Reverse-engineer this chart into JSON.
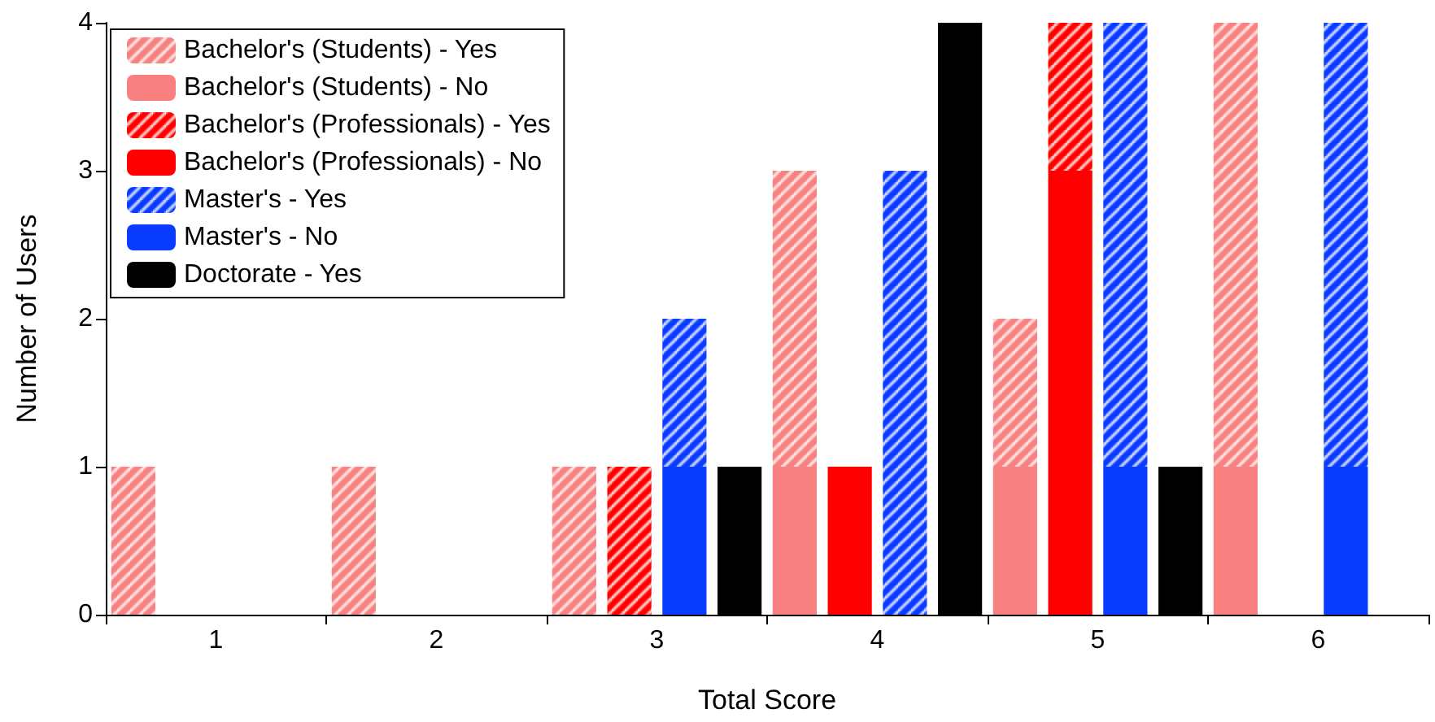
{
  "chart_data": {
    "type": "bar",
    "xlabel": "Total Score",
    "ylabel": "Number of Users",
    "categories": [
      "1",
      "2",
      "3",
      "4",
      "5",
      "6"
    ],
    "ylim": [
      0,
      4
    ],
    "yticks": [
      0,
      1,
      2,
      3,
      4
    ],
    "grid": false,
    "legend": "top left",
    "series": [
      {
        "name": "Bachelor's (Students) - Yes",
        "color": "#f88080",
        "values": [
          1,
          1,
          1,
          2,
          1,
          3
        ],
        "base": [
          0,
          0,
          0,
          1,
          1,
          1
        ]
      },
      {
        "name": "Bachelor's (Students) - No",
        "color": "#f88080",
        "values": [
          0,
          0,
          0,
          1,
          1,
          1
        ]
      },
      {
        "name": "Bachelor's (Professionals) - Yes",
        "color": "#ff0000",
        "values": [
          0,
          0,
          1,
          0,
          1,
          0
        ],
        "base": [
          null,
          null,
          0,
          null,
          3,
          null
        ]
      },
      {
        "name": "Bachelor's (Professionals) - No",
        "color": "#ff0000",
        "values": [
          0,
          0,
          0,
          1,
          3,
          0
        ]
      },
      {
        "name": "Master's - Yes",
        "color": "#0a3cff",
        "values": [
          0,
          0,
          1,
          3,
          3,
          3
        ],
        "base": [
          null,
          null,
          1,
          0,
          1,
          1
        ]
      },
      {
        "name": "Master's - No",
        "color": "#0a3cff",
        "values": [
          0,
          0,
          1,
          0,
          1,
          1
        ]
      },
      {
        "name": "Doctorate - Yes",
        "color": "#000000",
        "values": [
          0,
          0,
          1,
          4,
          1,
          0
        ]
      }
    ]
  }
}
